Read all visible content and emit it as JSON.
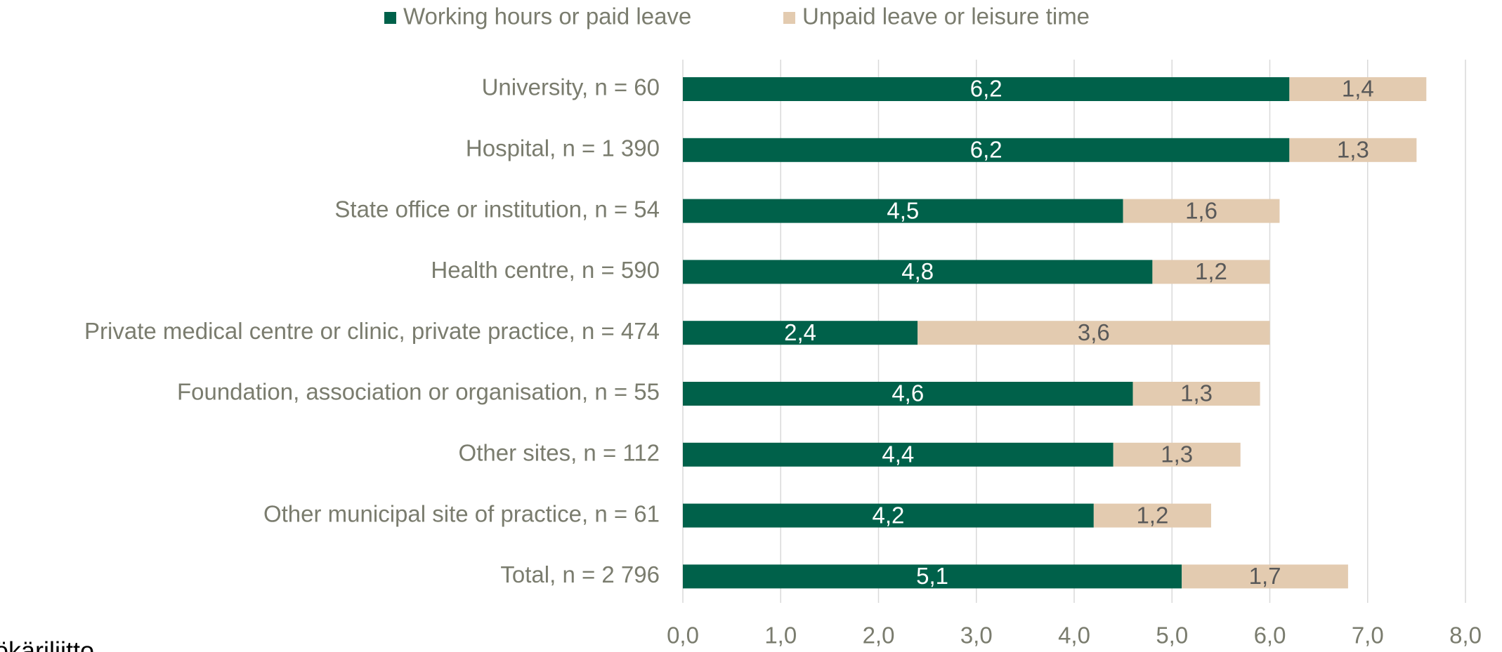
{
  "chart_data": {
    "type": "stacked_barh",
    "categories": [
      "University, n = 60",
      "Hospital, n = 1 390",
      "State office or institution, n = 54",
      "Health centre, n = 590",
      "Private medical centre or clinic, private practice, n = 474",
      "Foundation, association or organisation, n = 55",
      "Other sites, n = 112",
      "Other municipal site of practice, n = 61",
      "Total, n = 2 796"
    ],
    "series": [
      {
        "name": "Working hours or paid leave",
        "color": "#00614a",
        "values": [
          6.2,
          6.2,
          4.5,
          4.8,
          2.4,
          4.6,
          4.4,
          4.2,
          5.1
        ],
        "value_labels": [
          "6,2",
          "6,2",
          "4,5",
          "4,8",
          "2,4",
          "4,6",
          "4,4",
          "4,2",
          "5,1"
        ]
      },
      {
        "name": "Unpaid leave or leisure time",
        "color": "#e3cbb0",
        "values": [
          1.4,
          1.3,
          1.6,
          1.2,
          3.6,
          1.3,
          1.3,
          1.2,
          1.7
        ],
        "value_labels": [
          "1,4",
          "1,3",
          "1,6",
          "1,2",
          "3,6",
          "1,3",
          "1,3",
          "1,2",
          "1,7"
        ]
      }
    ],
    "xlim": [
      0,
      8
    ],
    "xticks": [
      {
        "value": 0,
        "label": "0,0"
      },
      {
        "value": 1,
        "label": "1,0"
      },
      {
        "value": 2,
        "label": "2,0"
      },
      {
        "value": 3,
        "label": "3,0"
      },
      {
        "value": 4,
        "label": "4,0"
      },
      {
        "value": 5,
        "label": "5,0"
      },
      {
        "value": 6,
        "label": "6,0"
      },
      {
        "value": 7,
        "label": "7,0"
      },
      {
        "value": 8,
        "label": "8,0"
      }
    ],
    "grid": true,
    "legend": "top",
    "source": "ökäriliitto"
  }
}
